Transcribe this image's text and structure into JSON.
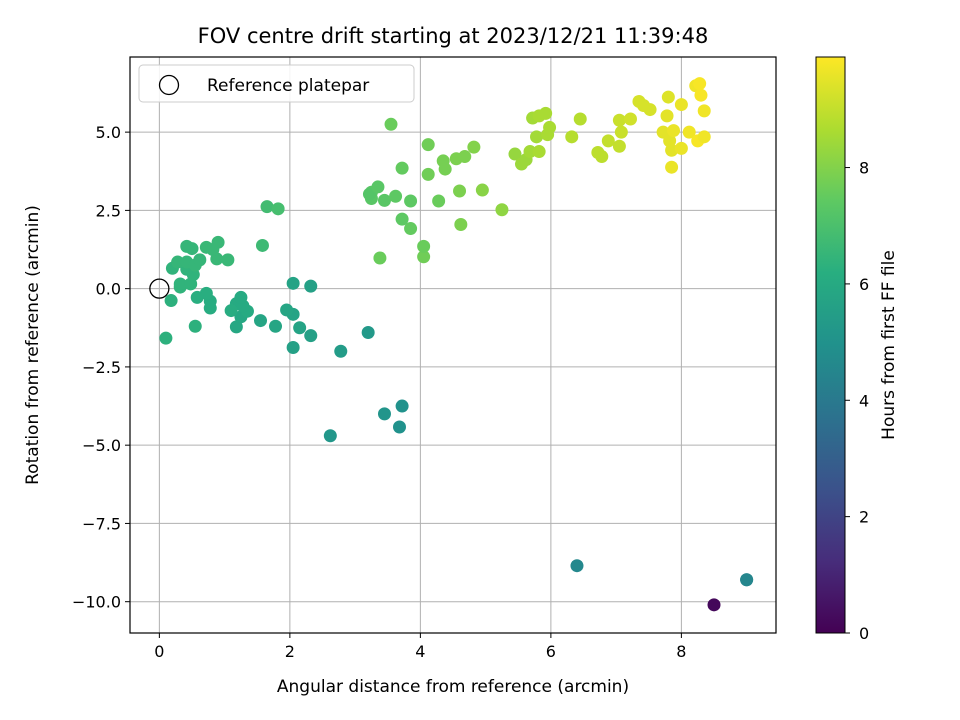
{
  "chart_data": {
    "type": "scatter",
    "title": "FOV centre drift starting at 2023/12/21 11:39:48",
    "xlabel": "Angular distance from reference (arcmin)",
    "ylabel": "Rotation from reference (arcmin)",
    "colorbar_label": "Hours from first FF file",
    "xlim": [
      -0.45,
      9.45
    ],
    "ylim": [
      -11.0,
      7.4
    ],
    "clim": [
      0,
      9.9
    ],
    "grid": true,
    "colormap": "viridis",
    "x_ticks": [
      0,
      2,
      4,
      6,
      8
    ],
    "x_tick_labels": [
      "0",
      "2",
      "4",
      "6",
      "8"
    ],
    "y_ticks": [
      5.0,
      2.5,
      0.0,
      -2.5,
      -5.0,
      -7.5,
      -10.0
    ],
    "y_tick_labels": [
      "5.0",
      "2.5",
      "0.0",
      "−2.5",
      "−5.0",
      "−7.5",
      "−10.0"
    ],
    "colorbar_ticks": [
      0,
      2,
      4,
      6,
      8
    ],
    "colorbar_tick_labels": [
      "0",
      "2",
      "4",
      "6",
      "8"
    ],
    "legend": {
      "placement": "top-left",
      "entries": [
        {
          "label": "Reference platepar",
          "marker": "open-circle"
        }
      ]
    },
    "reference_point": {
      "x": 0.0,
      "y": 0.0
    },
    "points": [
      [
        8.5,
        -10.1,
        0.2
      ],
      [
        9.0,
        -9.3,
        4.4
      ],
      [
        9.0,
        -9.3,
        4.5
      ],
      [
        6.4,
        -8.85,
        4.6
      ],
      [
        2.62,
        -4.7,
        5.2
      ],
      [
        3.45,
        -4.0,
        5.1
      ],
      [
        3.68,
        -4.42,
        5.0
      ],
      [
        3.72,
        -3.75,
        5.0
      ],
      [
        2.78,
        -2.0,
        5.4
      ],
      [
        3.2,
        -1.4,
        5.3
      ],
      [
        2.05,
        -1.88,
        5.6
      ],
      [
        2.32,
        -1.5,
        5.6
      ],
      [
        2.15,
        -1.25,
        5.7
      ],
      [
        2.05,
        -0.82,
        5.7
      ],
      [
        1.95,
        -0.68,
        5.8
      ],
      [
        2.05,
        0.17,
        5.7
      ],
      [
        2.32,
        0.08,
        5.6
      ],
      [
        1.78,
        -1.2,
        5.8
      ],
      [
        1.55,
        -1.02,
        5.8
      ],
      [
        1.18,
        -1.22,
        5.9
      ],
      [
        1.25,
        -0.9,
        5.9
      ],
      [
        1.35,
        -0.72,
        6.0
      ],
      [
        1.28,
        -0.55,
        6.0
      ],
      [
        1.18,
        -0.48,
        6.0
      ],
      [
        1.1,
        -0.7,
        6.1
      ],
      [
        1.25,
        -0.28,
        6.0
      ],
      [
        0.78,
        -0.62,
        6.1
      ],
      [
        0.78,
        -0.4,
        6.1
      ],
      [
        0.72,
        -0.15,
        6.2
      ],
      [
        0.58,
        -0.28,
        6.2
      ],
      [
        0.55,
        -1.2,
        6.3
      ],
      [
        0.1,
        -1.58,
        6.3
      ],
      [
        0.18,
        -0.38,
        6.3
      ],
      [
        0.32,
        0.05,
        6.4
      ],
      [
        0.32,
        0.15,
        6.4
      ],
      [
        0.48,
        0.15,
        6.4
      ],
      [
        0.52,
        0.45,
        6.4
      ],
      [
        0.42,
        0.62,
        6.4
      ],
      [
        0.2,
        0.65,
        6.4
      ],
      [
        0.28,
        0.85,
        6.5
      ],
      [
        0.42,
        0.85,
        6.5
      ],
      [
        0.55,
        0.75,
        6.5
      ],
      [
        0.62,
        0.92,
        6.5
      ],
      [
        0.88,
        0.95,
        6.6
      ],
      [
        1.05,
        0.92,
        6.6
      ],
      [
        0.42,
        1.35,
        6.5
      ],
      [
        0.5,
        1.28,
        6.5
      ],
      [
        0.72,
        1.32,
        6.6
      ],
      [
        0.82,
        1.25,
        6.6
      ],
      [
        0.9,
        1.48,
        6.6
      ],
      [
        1.58,
        1.38,
        6.7
      ],
      [
        1.65,
        2.62,
        6.8
      ],
      [
        1.82,
        2.55,
        6.9
      ],
      [
        3.38,
        0.98,
        7.6
      ],
      [
        4.05,
        1.02,
        7.7
      ],
      [
        4.05,
        1.35,
        7.6
      ],
      [
        3.85,
        1.92,
        7.5
      ],
      [
        3.72,
        2.22,
        7.4
      ],
      [
        3.25,
        2.88,
        7.3
      ],
      [
        3.25,
        3.08,
        7.3
      ],
      [
        3.22,
        3.02,
        7.2
      ],
      [
        3.35,
        3.25,
        7.3
      ],
      [
        3.45,
        2.82,
        7.3
      ],
      [
        3.62,
        2.95,
        7.4
      ],
      [
        3.72,
        3.85,
        7.5
      ],
      [
        3.55,
        5.25,
        7.6
      ],
      [
        3.85,
        2.8,
        7.4
      ],
      [
        4.28,
        2.8,
        7.6
      ],
      [
        4.12,
        3.65,
        7.7
      ],
      [
        4.12,
        4.6,
        7.7
      ],
      [
        4.35,
        4.08,
        7.8
      ],
      [
        4.38,
        3.82,
        7.8
      ],
      [
        4.55,
        4.15,
        7.9
      ],
      [
        4.68,
        4.22,
        7.9
      ],
      [
        4.82,
        4.52,
        8.0
      ],
      [
        4.6,
        3.12,
        7.9
      ],
      [
        4.62,
        2.05,
        7.9
      ],
      [
        4.95,
        3.15,
        8.1
      ],
      [
        5.25,
        2.52,
        8.2
      ],
      [
        5.45,
        4.3,
        8.3
      ],
      [
        5.55,
        3.98,
        8.4
      ],
      [
        5.62,
        4.12,
        8.4
      ],
      [
        5.68,
        4.38,
        8.5
      ],
      [
        5.78,
        4.85,
        8.5
      ],
      [
        5.72,
        5.45,
        8.5
      ],
      [
        5.82,
        5.52,
        8.6
      ],
      [
        5.92,
        5.6,
        8.6
      ],
      [
        5.95,
        4.92,
        8.6
      ],
      [
        5.98,
        5.15,
        8.6
      ],
      [
        5.82,
        4.38,
        8.6
      ],
      [
        6.32,
        4.85,
        8.8
      ],
      [
        6.45,
        5.42,
        8.8
      ],
      [
        6.72,
        4.35,
        8.9
      ],
      [
        6.78,
        4.22,
        8.9
      ],
      [
        6.88,
        4.72,
        9.0
      ],
      [
        7.05,
        4.55,
        9.0
      ],
      [
        7.05,
        5.38,
        9.1
      ],
      [
        7.08,
        5.0,
        9.1
      ],
      [
        7.22,
        5.42,
        9.2
      ],
      [
        7.35,
        5.98,
        9.3
      ],
      [
        7.42,
        5.85,
        9.3
      ],
      [
        7.52,
        5.72,
        9.3
      ],
      [
        7.72,
        5.0,
        9.5
      ],
      [
        7.78,
        5.52,
        9.5
      ],
      [
        7.82,
        4.72,
        9.5
      ],
      [
        7.8,
        6.12,
        9.4
      ],
      [
        7.85,
        4.42,
        9.5
      ],
      [
        7.88,
        5.05,
        9.6
      ],
      [
        7.85,
        3.88,
        9.6
      ],
      [
        8.0,
        5.88,
        9.6
      ],
      [
        8.0,
        4.48,
        9.6
      ],
      [
        8.12,
        5.0,
        9.7
      ],
      [
        8.22,
        6.48,
        9.7
      ],
      [
        8.28,
        6.55,
        9.8
      ],
      [
        8.3,
        6.18,
        9.8
      ],
      [
        8.25,
        4.72,
        9.8
      ],
      [
        8.35,
        4.85,
        9.7
      ],
      [
        8.35,
        5.68,
        9.7
      ]
    ]
  }
}
